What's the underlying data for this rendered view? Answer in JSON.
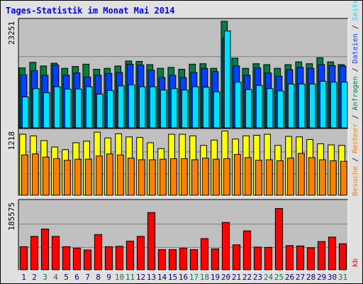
{
  "title": "Tages-Statistik im Monat Mai 2014",
  "colors": {
    "background": "#e0e0e0",
    "panel": "#c0c0c0",
    "title": "#0000ff",
    "hits": "#008040",
    "files": "#0040ff",
    "pages": "#00e0ff",
    "visits": "#ffff00",
    "sites": "#ff8000",
    "kbytes": "#ff0000",
    "day_highlight": "#008040",
    "day_normal": "#000080"
  },
  "chart_data": [
    {
      "type": "bar",
      "panel": "top",
      "y_max_label": "23251",
      "ylim": [
        0,
        23251
      ],
      "x": [
        "1",
        "2",
        "3",
        "4",
        "5",
        "6",
        "7",
        "8",
        "9",
        "10",
        "11",
        "12",
        "13",
        "14",
        "15",
        "16",
        "17",
        "18",
        "19",
        "20",
        "21",
        "22",
        "23",
        "24",
        "25",
        "26",
        "27",
        "28",
        "29",
        "30",
        "31"
      ],
      "highlighted_days": [
        "3",
        "4",
        "10",
        "11",
        "17",
        "18",
        "24",
        "25",
        "31"
      ],
      "series": [
        {
          "name": "Anfragen",
          "color": "#008040",
          "values": [
            13000,
            14200,
            13400,
            14000,
            12900,
            13300,
            13800,
            12700,
            12900,
            13400,
            14500,
            14400,
            13700,
            12900,
            13100,
            12700,
            13800,
            13900,
            12900,
            23100,
            15100,
            12900,
            13900,
            13700,
            12900,
            13700,
            14300,
            13900,
            15200,
            14300,
            13700
          ]
        },
        {
          "name": "Dateien",
          "color": "#0040ff",
          "values": [
            11500,
            12400,
            11400,
            13600,
            11400,
            11900,
            11000,
            11400,
            11800,
            12000,
            13800,
            13600,
            12500,
            10900,
            11400,
            10900,
            12000,
            12900,
            12200,
            19600,
            13400,
            11400,
            13000,
            11900,
            11200,
            12600,
            13100,
            12900,
            13700,
            13500,
            13400
          ]
        },
        {
          "name": "Seiten",
          "color": "#00e0ff",
          "values": [
            6700,
            8500,
            7600,
            8900,
            8400,
            8400,
            8900,
            7300,
            8100,
            9100,
            9300,
            8900,
            8900,
            8200,
            8500,
            8200,
            8900,
            8800,
            7800,
            21000,
            9900,
            8300,
            9200,
            8500,
            8000,
            9500,
            9500,
            9500,
            10100,
            9900,
            9900
          ]
        }
      ]
    },
    {
      "type": "bar",
      "panel": "middle",
      "y_max_label": "1218",
      "ylim": [
        0,
        1218
      ],
      "x": [
        "1",
        "2",
        "3",
        "4",
        "5",
        "6",
        "7",
        "8",
        "9",
        "10",
        "11",
        "12",
        "13",
        "14",
        "15",
        "16",
        "17",
        "18",
        "19",
        "20",
        "21",
        "22",
        "23",
        "24",
        "25",
        "26",
        "27",
        "28",
        "29",
        "30",
        "31"
      ],
      "series": [
        {
          "name": "Besuche",
          "color": "#ffff00",
          "values": [
            1150,
            1120,
            1030,
            910,
            860,
            990,
            1020,
            1190,
            1080,
            1160,
            1100,
            1090,
            990,
            880,
            1150,
            1150,
            1120,
            940,
            1040,
            1210,
            1060,
            1120,
            1130,
            1150,
            940,
            1110,
            1100,
            1050,
            970,
            950,
            940
          ]
        },
        {
          "name": "Rechner",
          "color": "#ff8000",
          "values": [
            760,
            780,
            720,
            690,
            660,
            680,
            680,
            740,
            780,
            760,
            700,
            670,
            670,
            680,
            690,
            690,
            670,
            700,
            680,
            690,
            770,
            710,
            660,
            670,
            650,
            700,
            790,
            710,
            670,
            650,
            640
          ]
        }
      ]
    },
    {
      "type": "bar",
      "panel": "bottom",
      "y_max_label": "185575",
      "ylim": [
        0,
        185575
      ],
      "x": [
        "1",
        "2",
        "3",
        "4",
        "5",
        "6",
        "7",
        "8",
        "9",
        "10",
        "11",
        "12",
        "13",
        "14",
        "15",
        "16",
        "17",
        "18",
        "19",
        "20",
        "21",
        "22",
        "23",
        "24",
        "25",
        "26",
        "27",
        "28",
        "29",
        "30",
        "31"
      ],
      "series": [
        {
          "name": "kb",
          "color": "#ff0000",
          "values": [
            63000,
            91000,
            111000,
            91000,
            63000,
            59000,
            54000,
            96000,
            63000,
            64000,
            78000,
            91000,
            156000,
            55000,
            55000,
            59000,
            55000,
            85000,
            57000,
            129000,
            68000,
            106000,
            62000,
            61000,
            167000,
            66000,
            65000,
            60000,
            77000,
            89000,
            71000
          ]
        }
      ]
    }
  ],
  "legends": {
    "top": [
      {
        "text": "Anfragen",
        "color": "#008040"
      },
      {
        "text": "Dateien",
        "color": "#0040ff"
      },
      {
        "text": "Seiten",
        "color": "#00e0ff"
      }
    ],
    "middle": [
      {
        "text": "Besuche",
        "color": "#ff8000"
      },
      {
        "text": "Rechner",
        "color": "#ff8000"
      }
    ],
    "bottom": [
      {
        "text": "kb",
        "color": "#ff0000"
      }
    ]
  }
}
